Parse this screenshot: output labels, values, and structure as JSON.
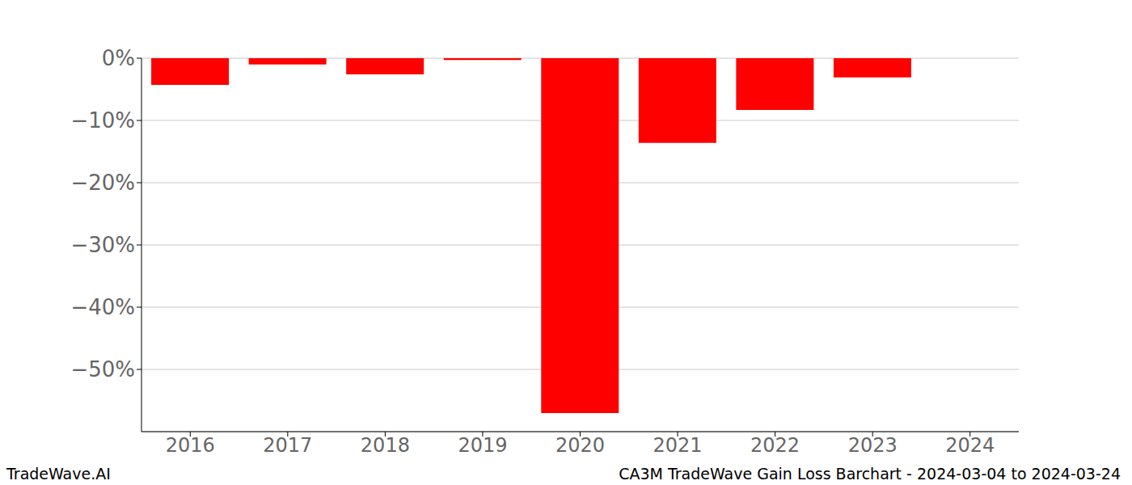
{
  "chart_data": {
    "type": "bar",
    "title": "CA3M TradeWave Gain Loss Barchart - 2024-03-04 to 2024-03-24",
    "annotations": [
      "TradeWave.AI"
    ],
    "categories": [
      "2016",
      "2017",
      "2018",
      "2019",
      "2020",
      "2021",
      "2022",
      "2023",
      "2024"
    ],
    "values": [
      -4.3,
      -1.0,
      -2.6,
      -0.3,
      -57,
      -13.6,
      -8.3,
      -3.1,
      0
    ],
    "color": "#ff0000",
    "ylim": [
      -60,
      0
    ],
    "yticks": [
      {
        "value": 0,
        "label": "0%"
      },
      {
        "value": -10,
        "label": "−10%"
      },
      {
        "value": -20,
        "label": "−20%"
      },
      {
        "value": -30,
        "label": "−30%"
      },
      {
        "value": -40,
        "label": "−40%"
      },
      {
        "value": -50,
        "label": "−50%"
      }
    ],
    "grid": true
  }
}
